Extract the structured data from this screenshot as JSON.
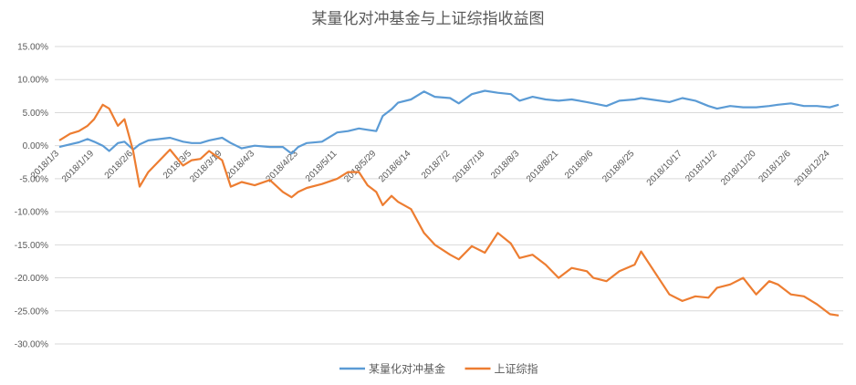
{
  "chart_data": {
    "type": "line",
    "title": "某量化对冲基金与上证综指收益图",
    "xlabel": "",
    "ylabel": "",
    "ylim": [
      -0.3,
      0.15
    ],
    "y_ticks": [
      "15.00%",
      "10.00%",
      "5.00%",
      "0.00%",
      "-5.00%",
      "-10.00%",
      "-15.00%",
      "-20.00%",
      "-25.00%",
      "-30.00%"
    ],
    "y_tick_values": [
      0.15,
      0.1,
      0.05,
      0.0,
      -0.05,
      -0.1,
      -0.15,
      -0.2,
      -0.25,
      -0.3
    ],
    "x_range": [
      "2018/1/3",
      "2018/12/28"
    ],
    "x_ticks": [
      "2018/1/3",
      "2018/1/19",
      "2018/2/6",
      "2018/3/5",
      "2018/3/19",
      "2018/4/3",
      "2018/4/23",
      "2018/5/11",
      "2018/5/29",
      "2018/6/14",
      "2018/7/2",
      "2018/7/18",
      "2018/8/3",
      "2018/8/21",
      "2018/9/6",
      "2018/9/25",
      "2018/10/17",
      "2018/11/2",
      "2018/11/20",
      "2018/12/6",
      "2018/12/24"
    ],
    "grid": true,
    "legend_position": "bottom",
    "series": [
      {
        "name": "某量化对冲基金",
        "color": "#5b9bd5",
        "points": [
          [
            "2018/1/3",
            -0.002
          ],
          [
            "2018/1/8",
            0.002
          ],
          [
            "2018/1/12",
            0.005
          ],
          [
            "2018/1/16",
            0.01
          ],
          [
            "2018/1/19",
            0.006
          ],
          [
            "2018/1/23",
            0.0
          ],
          [
            "2018/1/26",
            -0.008
          ],
          [
            "2018/1/30",
            0.004
          ],
          [
            "2018/2/2",
            0.006
          ],
          [
            "2018/2/6",
            -0.006
          ],
          [
            "2018/2/9",
            0.002
          ],
          [
            "2018/2/13",
            0.008
          ],
          [
            "2018/2/23",
            0.012
          ],
          [
            "2018/3/1",
            0.006
          ],
          [
            "2018/3/5",
            0.004
          ],
          [
            "2018/3/9",
            0.004
          ],
          [
            "2018/3/13",
            0.008
          ],
          [
            "2018/3/19",
            0.012
          ],
          [
            "2018/3/23",
            0.004
          ],
          [
            "2018/3/28",
            -0.004
          ],
          [
            "2018/4/3",
            0.0
          ],
          [
            "2018/4/10",
            -0.002
          ],
          [
            "2018/4/16",
            -0.002
          ],
          [
            "2018/4/20",
            -0.012
          ],
          [
            "2018/4/23",
            -0.002
          ],
          [
            "2018/4/27",
            0.004
          ],
          [
            "2018/5/4",
            0.006
          ],
          [
            "2018/5/11",
            0.02
          ],
          [
            "2018/5/16",
            0.022
          ],
          [
            "2018/5/21",
            0.026
          ],
          [
            "2018/5/25",
            0.024
          ],
          [
            "2018/5/29",
            0.022
          ],
          [
            "2018/6/1",
            0.045
          ],
          [
            "2018/6/5",
            0.055
          ],
          [
            "2018/6/8",
            0.065
          ],
          [
            "2018/6/14",
            0.07
          ],
          [
            "2018/6/20",
            0.082
          ],
          [
            "2018/6/25",
            0.074
          ],
          [
            "2018/7/2",
            0.072
          ],
          [
            "2018/7/6",
            0.064
          ],
          [
            "2018/7/12",
            0.078
          ],
          [
            "2018/7/18",
            0.083
          ],
          [
            "2018/7/24",
            0.08
          ],
          [
            "2018/7/30",
            0.078
          ],
          [
            "2018/8/3",
            0.068
          ],
          [
            "2018/8/9",
            0.074
          ],
          [
            "2018/8/15",
            0.07
          ],
          [
            "2018/8/21",
            0.068
          ],
          [
            "2018/8/27",
            0.07
          ],
          [
            "2018/9/3",
            0.066
          ],
          [
            "2018/9/6",
            0.064
          ],
          [
            "2018/9/12",
            0.06
          ],
          [
            "2018/9/18",
            0.068
          ],
          [
            "2018/9/25",
            0.07
          ],
          [
            "2018/9/28",
            0.072
          ],
          [
            "2018/10/11",
            0.066
          ],
          [
            "2018/10/17",
            0.072
          ],
          [
            "2018/10/23",
            0.068
          ],
          [
            "2018/10/29",
            0.06
          ],
          [
            "2018/11/2",
            0.056
          ],
          [
            "2018/11/8",
            0.06
          ],
          [
            "2018/11/14",
            0.058
          ],
          [
            "2018/11/20",
            0.058
          ],
          [
            "2018/11/26",
            0.06
          ],
          [
            "2018/11/30",
            0.062
          ],
          [
            "2018/12/6",
            0.064
          ],
          [
            "2018/12/12",
            0.06
          ],
          [
            "2018/12/18",
            0.06
          ],
          [
            "2018/12/24",
            0.058
          ],
          [
            "2018/12/28",
            0.062
          ]
        ]
      },
      {
        "name": "上证综指",
        "color": "#ed7d31",
        "points": [
          [
            "2018/1/3",
            0.008
          ],
          [
            "2018/1/8",
            0.018
          ],
          [
            "2018/1/12",
            0.022
          ],
          [
            "2018/1/16",
            0.03
          ],
          [
            "2018/1/19",
            0.04
          ],
          [
            "2018/1/23",
            0.062
          ],
          [
            "2018/1/26",
            0.056
          ],
          [
            "2018/1/30",
            0.03
          ],
          [
            "2018/2/2",
            0.04
          ],
          [
            "2018/2/6",
            -0.008
          ],
          [
            "2018/2/9",
            -0.062
          ],
          [
            "2018/2/13",
            -0.04
          ],
          [
            "2018/2/23",
            -0.006
          ],
          [
            "2018/3/1",
            -0.03
          ],
          [
            "2018/3/5",
            -0.022
          ],
          [
            "2018/3/9",
            -0.02
          ],
          [
            "2018/3/13",
            -0.008
          ],
          [
            "2018/3/19",
            -0.022
          ],
          [
            "2018/3/23",
            -0.062
          ],
          [
            "2018/3/28",
            -0.055
          ],
          [
            "2018/4/3",
            -0.06
          ],
          [
            "2018/4/10",
            -0.052
          ],
          [
            "2018/4/16",
            -0.07
          ],
          [
            "2018/4/20",
            -0.078
          ],
          [
            "2018/4/23",
            -0.07
          ],
          [
            "2018/4/27",
            -0.064
          ],
          [
            "2018/5/4",
            -0.058
          ],
          [
            "2018/5/11",
            -0.05
          ],
          [
            "2018/5/16",
            -0.04
          ],
          [
            "2018/5/21",
            -0.04
          ],
          [
            "2018/5/25",
            -0.06
          ],
          [
            "2018/5/29",
            -0.07
          ],
          [
            "2018/6/1",
            -0.09
          ],
          [
            "2018/6/5",
            -0.076
          ],
          [
            "2018/6/8",
            -0.085
          ],
          [
            "2018/6/14",
            -0.096
          ],
          [
            "2018/6/20",
            -0.132
          ],
          [
            "2018/6/25",
            -0.15
          ],
          [
            "2018/7/2",
            -0.165
          ],
          [
            "2018/7/6",
            -0.172
          ],
          [
            "2018/7/12",
            -0.152
          ],
          [
            "2018/7/18",
            -0.162
          ],
          [
            "2018/7/24",
            -0.132
          ],
          [
            "2018/7/30",
            -0.148
          ],
          [
            "2018/8/3",
            -0.17
          ],
          [
            "2018/8/9",
            -0.165
          ],
          [
            "2018/8/15",
            -0.18
          ],
          [
            "2018/8/21",
            -0.2
          ],
          [
            "2018/8/27",
            -0.185
          ],
          [
            "2018/9/3",
            -0.19
          ],
          [
            "2018/9/6",
            -0.2
          ],
          [
            "2018/9/12",
            -0.205
          ],
          [
            "2018/9/18",
            -0.19
          ],
          [
            "2018/9/25",
            -0.18
          ],
          [
            "2018/9/28",
            -0.16
          ],
          [
            "2018/10/11",
            -0.225
          ],
          [
            "2018/10/17",
            -0.235
          ],
          [
            "2018/10/23",
            -0.228
          ],
          [
            "2018/10/29",
            -0.23
          ],
          [
            "2018/11/2",
            -0.215
          ],
          [
            "2018/11/8",
            -0.21
          ],
          [
            "2018/11/14",
            -0.2
          ],
          [
            "2018/11/20",
            -0.225
          ],
          [
            "2018/11/26",
            -0.205
          ],
          [
            "2018/11/30",
            -0.21
          ],
          [
            "2018/12/6",
            -0.225
          ],
          [
            "2018/12/12",
            -0.228
          ],
          [
            "2018/12/18",
            -0.24
          ],
          [
            "2018/12/24",
            -0.255
          ],
          [
            "2018/12/28",
            -0.257
          ]
        ]
      }
    ]
  }
}
